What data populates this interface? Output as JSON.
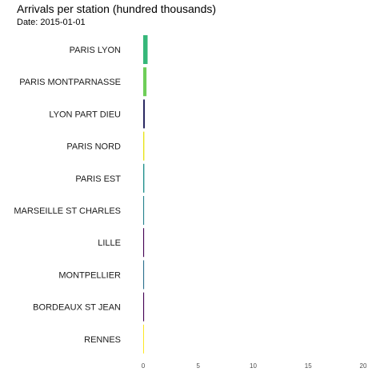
{
  "chart_data": {
    "type": "bar",
    "orientation": "horizontal",
    "title": "Arrivals per station (hundred thousands)",
    "subtitle": "Date: 2015-01-01",
    "xlabel": "",
    "ylabel": "",
    "xlim": [
      0,
      20
    ],
    "x_ticks": [
      "0",
      "5",
      "10",
      "15",
      "20"
    ],
    "grid": false,
    "categories": [
      "PARIS LYON",
      "PARIS MONTPARNASSE",
      "LYON PART DIEU",
      "PARIS NORD",
      "PARIS EST",
      "MARSEILLE ST CHARLES",
      "LILLE",
      "MONTPELLIER",
      "BORDEAUX ST JEAN",
      "RENNES"
    ],
    "values": [
      0.4,
      0.3,
      0.15,
      0.1,
      0.1,
      0.08,
      0.08,
      0.08,
      0.08,
      0.06
    ],
    "colors": [
      "#35b779",
      "#6ece58",
      "#2c2b63",
      "#e8e419",
      "#21908d",
      "#26828e",
      "#440154",
      "#2c718e",
      "#440154",
      "#fde725"
    ]
  }
}
